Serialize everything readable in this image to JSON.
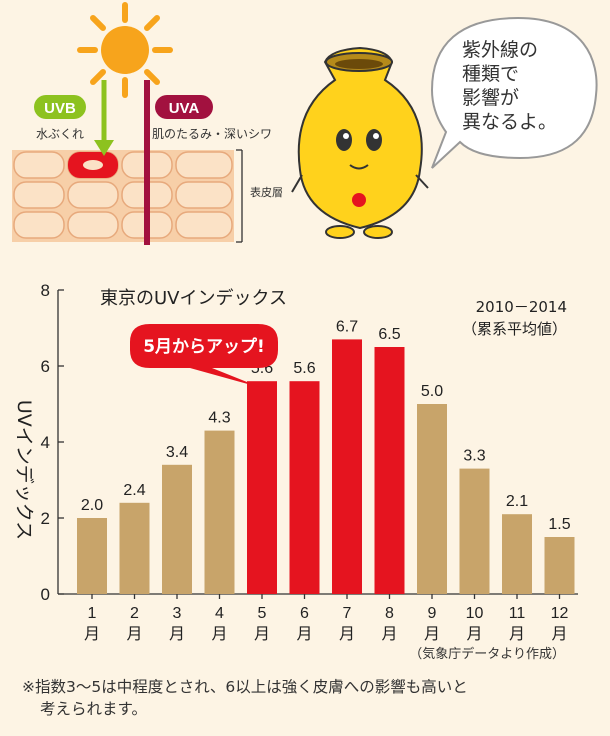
{
  "illustration": {
    "uvb_label": "UVB",
    "uvb_effect": "水ぶくれ",
    "uva_label": "UVA",
    "uva_effect": "肌のたるみ・深いシワ",
    "skin_layer_label": "表皮層",
    "speech_bubble": [
      "紫外線の",
      "種類で",
      "影響が",
      "異なるよ。"
    ]
  },
  "chart_data": {
    "type": "bar",
    "title": "東京のUVインデックス",
    "period_note": [
      "2010－2014",
      "（累系平均値）"
    ],
    "ylabel": "UVインデックス",
    "ylim": [
      0,
      8
    ],
    "yticks": [
      0,
      2,
      4,
      6,
      8
    ],
    "categories": [
      "1月",
      "2月",
      "3月",
      "4月",
      "5月",
      "6月",
      "7月",
      "8月",
      "9月",
      "10月",
      "11月",
      "12月"
    ],
    "category_numbers": [
      "1",
      "2",
      "3",
      "4",
      "5",
      "6",
      "7",
      "8",
      "9",
      "10",
      "11",
      "12"
    ],
    "category_unit": "月",
    "values": [
      2.0,
      2.4,
      3.4,
      4.3,
      5.6,
      5.6,
      6.7,
      6.5,
      5.0,
      3.3,
      2.1,
      1.5
    ],
    "value_labels": [
      "2.0",
      "2.4",
      "3.4",
      "4.3",
      "5.6",
      "5.6",
      "6.7",
      "6.5",
      "5.0",
      "3.3",
      "2.1",
      "1.5"
    ],
    "highlighted_months": [
      "5月",
      "6月",
      "7月",
      "8月"
    ],
    "callout": "5月からアップ!",
    "source": "（気象庁データより作成）",
    "grid": false,
    "colors": {
      "normal_bar": "#c8a46a",
      "highlight_bar": "#e5141f",
      "callout_fill": "#e5141f",
      "callout_text": "#ffffff"
    }
  },
  "footnote": [
    "※指数3～5は中程度とされ、6以上は強く皮膚への影響も高いと",
    "考えられます。"
  ]
}
